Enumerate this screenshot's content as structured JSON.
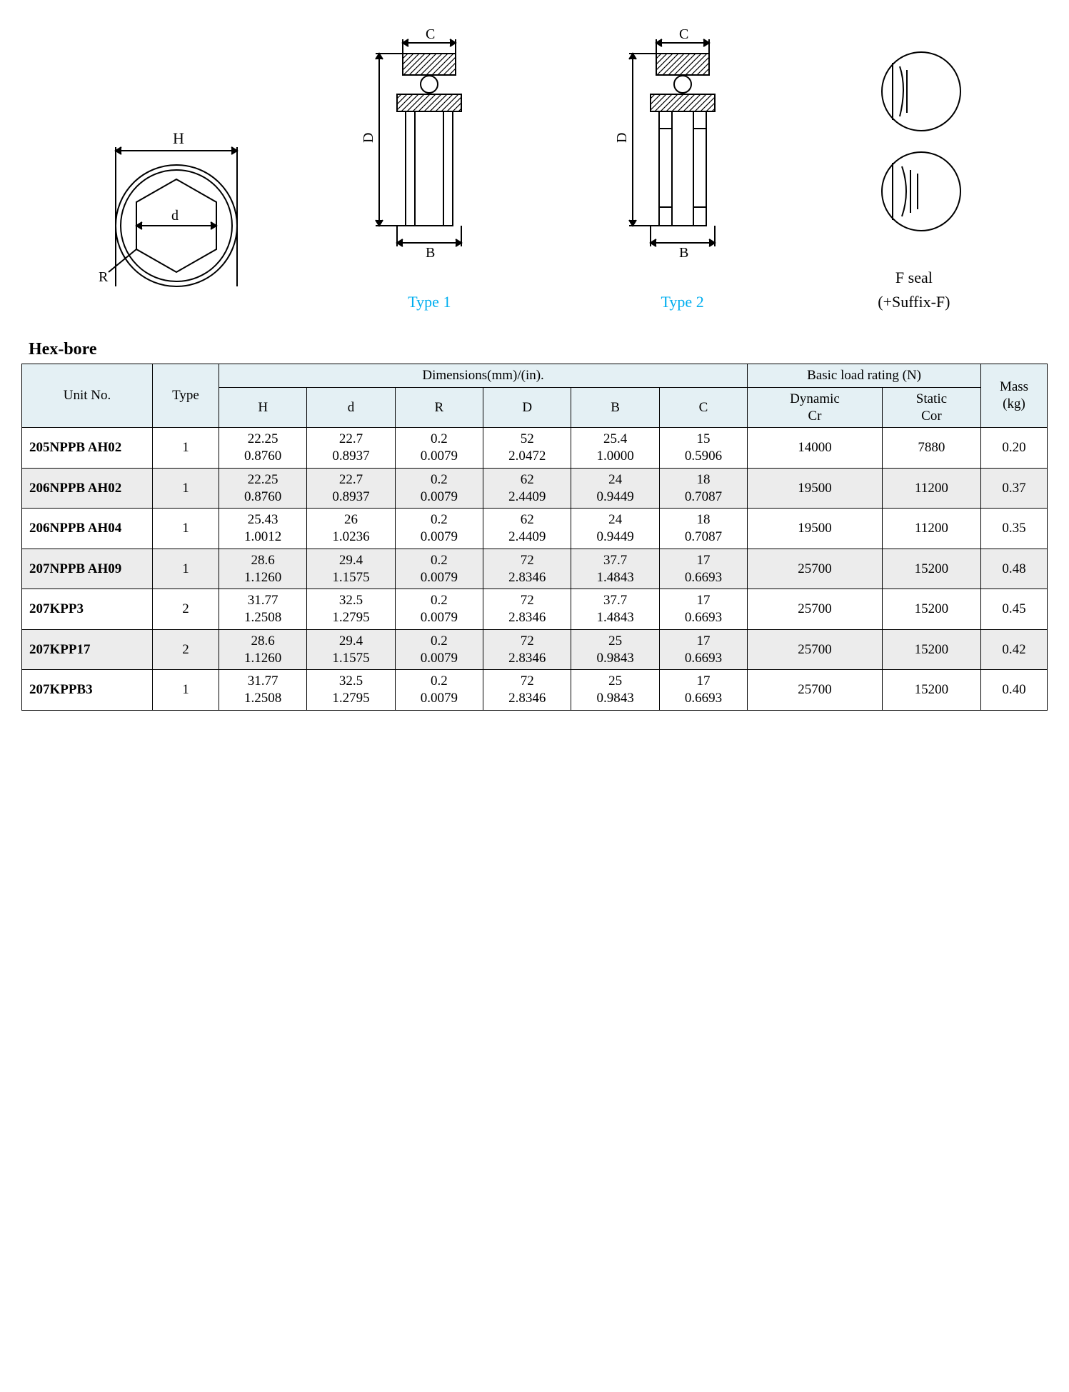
{
  "diagrams": {
    "front": {
      "labels": {
        "H": "H",
        "d": "d",
        "R": "R"
      }
    },
    "type1": {
      "label": "Type 1",
      "labels": {
        "D": "D",
        "B": "B",
        "C": "C"
      }
    },
    "type2": {
      "label": "Type 2",
      "labels": {
        "D": "D",
        "B": "B",
        "C": "C"
      }
    },
    "fseal": {
      "line1": "F seal",
      "line2": "(+Suffix-F)"
    }
  },
  "section_title": "Hex-bore",
  "colors": {
    "header_bg": "#e4f0f4",
    "row_alt_bg": "#ececec",
    "type_label": "#00aeef",
    "border": "#000000"
  },
  "table": {
    "headers": {
      "unit": "Unit No.",
      "type": "Type",
      "dimensions": "Dimensions(mm)/(in).",
      "load": "Basic load rating (N)",
      "mass": "Mass\n(kg)",
      "H": "H",
      "d": "d",
      "R": "R",
      "D": "D",
      "B": "B",
      "C": "C",
      "dynamic": "Dynamic\nCr",
      "static": "Static\nCor"
    },
    "rows": [
      {
        "unit": "205NPPB AH02",
        "type": "1",
        "H": "22.25\n0.8760",
        "d": "22.7\n0.8937",
        "R": "0.2\n0.0079",
        "D": "52\n2.0472",
        "B": "25.4\n1.0000",
        "C": "15\n0.5906",
        "cr": "14000",
        "cor": "7880",
        "mass": "0.20"
      },
      {
        "unit": "206NPPB AH02",
        "type": "1",
        "H": "22.25\n0.8760",
        "d": "22.7\n0.8937",
        "R": "0.2\n0.0079",
        "D": "62\n2.4409",
        "B": "24\n0.9449",
        "C": "18\n0.7087",
        "cr": "19500",
        "cor": "11200",
        "mass": "0.37"
      },
      {
        "unit": "206NPPB AH04",
        "type": "1",
        "H": "25.43\n1.0012",
        "d": "26\n1.0236",
        "R": "0.2\n0.0079",
        "D": "62\n2.4409",
        "B": "24\n0.9449",
        "C": "18\n0.7087",
        "cr": "19500",
        "cor": "11200",
        "mass": "0.35"
      },
      {
        "unit": "207NPPB AH09",
        "type": "1",
        "H": "28.6\n1.1260",
        "d": "29.4\n1.1575",
        "R": "0.2\n0.0079",
        "D": "72\n2.8346",
        "B": "37.7\n1.4843",
        "C": "17\n0.6693",
        "cr": "25700",
        "cor": "15200",
        "mass": "0.48"
      },
      {
        "unit": "207KPP3",
        "type": "2",
        "H": "31.77\n1.2508",
        "d": "32.5\n1.2795",
        "R": "0.2\n0.0079",
        "D": "72\n2.8346",
        "B": "37.7\n1.4843",
        "C": "17\n0.6693",
        "cr": "25700",
        "cor": "15200",
        "mass": "0.45"
      },
      {
        "unit": "207KPP17",
        "type": "2",
        "H": "28.6\n1.1260",
        "d": "29.4\n1.1575",
        "R": "0.2\n0.0079",
        "D": "72\n2.8346",
        "B": "25\n0.9843",
        "C": "17\n0.6693",
        "cr": "25700",
        "cor": "15200",
        "mass": "0.42"
      },
      {
        "unit": "207KPPB3",
        "type": "1",
        "H": "31.77\n1.2508",
        "d": "32.5\n1.2795",
        "R": "0.2\n0.0079",
        "D": "72\n2.8346",
        "B": "25\n0.9843",
        "C": "17\n0.6693",
        "cr": "25700",
        "cor": "15200",
        "mass": "0.40"
      }
    ]
  }
}
